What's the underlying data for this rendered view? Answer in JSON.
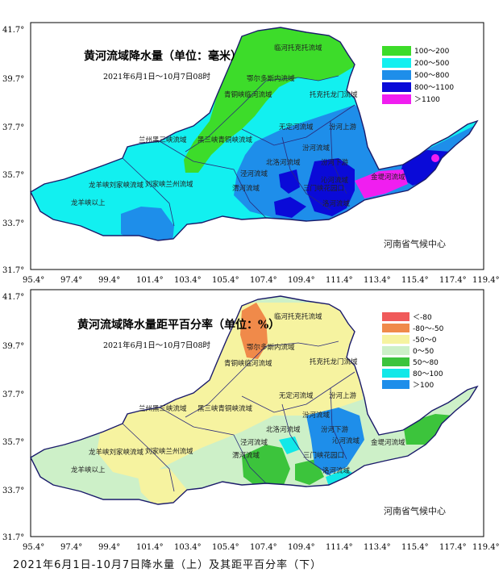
{
  "maps": [
    {
      "title": "黄河流域降水量（单位：毫米）",
      "date_range": "2021年6月1日～10月7日08时",
      "credit": "河南省气候中心",
      "x_ticks": [
        "95.4°",
        "97.4°",
        "99.4°",
        "101.4°",
        "103.4°",
        "105.4°",
        "107.4°",
        "109.4°",
        "111.4°",
        "113.4°",
        "115.4°",
        "117.4°",
        "119.4°"
      ],
      "y_ticks": [
        "41.7°",
        "39.7°",
        "37.7°",
        "35.7°",
        "33.7°",
        "31.7°"
      ],
      "legend": [
        {
          "label": "100～200",
          "color": "#3ddc2a"
        },
        {
          "label": "200～500",
          "color": "#12f0f0"
        },
        {
          "label": "500～800",
          "color": "#1e8eea"
        },
        {
          "label": "800～1100",
          "color": "#0a0ad8"
        },
        {
          "label": "＞1100",
          "color": "#f01ef0"
        }
      ],
      "regions": [
        "临河托克托流域",
        "鄂尔多斯内流域",
        "青铜峡临河流域",
        "托克托龙门流域",
        "兰州黑三峡流域",
        "黑三峡青铜峡流域",
        "无定河流域",
        "汾河上游",
        "汾河流域",
        "龙羊峡刘家峡流域",
        "刘家峡兰州流域",
        "龙羊峡以上",
        "泾河流域",
        "北洛河流域",
        "汾河下游",
        "渭河流域",
        "三门峡花园口",
        "金堤河流域",
        "沁河流域",
        "洛河流域"
      ]
    },
    {
      "title": "黄河流域降水量距平百分率（单位：%）",
      "date_range": "2021年6月1日～10月7日08时",
      "credit": "河南省气候中心",
      "x_ticks": [
        "95.4°",
        "97.4°",
        "99.4°",
        "101.4°",
        "103.4°",
        "105.4°",
        "107.4°",
        "109.4°",
        "111.4°",
        "113.4°",
        "115.4°",
        "117.4°",
        "119.4°"
      ],
      "y_ticks": [
        "41.7°",
        "39.7°",
        "37.7°",
        "35.7°",
        "33.7°",
        "31.7°"
      ],
      "legend": [
        {
          "label": "＜-80",
          "color": "#f05a5a"
        },
        {
          "label": "-80～-50",
          "color": "#f08a4a"
        },
        {
          "label": "-50～0",
          "color": "#f6f3a0"
        },
        {
          "label": "0～50",
          "color": "#cdf0c8"
        },
        {
          "label": "50～80",
          "color": "#3cc43c"
        },
        {
          "label": "80～100",
          "color": "#12e8e8"
        },
        {
          "label": "＞100",
          "color": "#1e8eea"
        }
      ],
      "regions": [
        "临河托克托流域",
        "鄂尔多斯内流域",
        "青铜峡临河流域",
        "托克托龙门流域",
        "兰州黑三峡流域",
        "黑三峡青铜峡流域",
        "无定河流域",
        "汾河上游",
        "汾河流域",
        "龙羊峡刘家峡流域",
        "刘家峡兰州流域",
        "龙羊峡以上",
        "泾河流域",
        "北洛河流域",
        "汾河下游",
        "沁河流域",
        "渭河流域",
        "三门峡花园口",
        "金堤河流域",
        "洛河流域"
      ]
    }
  ],
  "caption": "2021年6月1日-10月7日降水量（上）及其距平百分率（下）"
}
